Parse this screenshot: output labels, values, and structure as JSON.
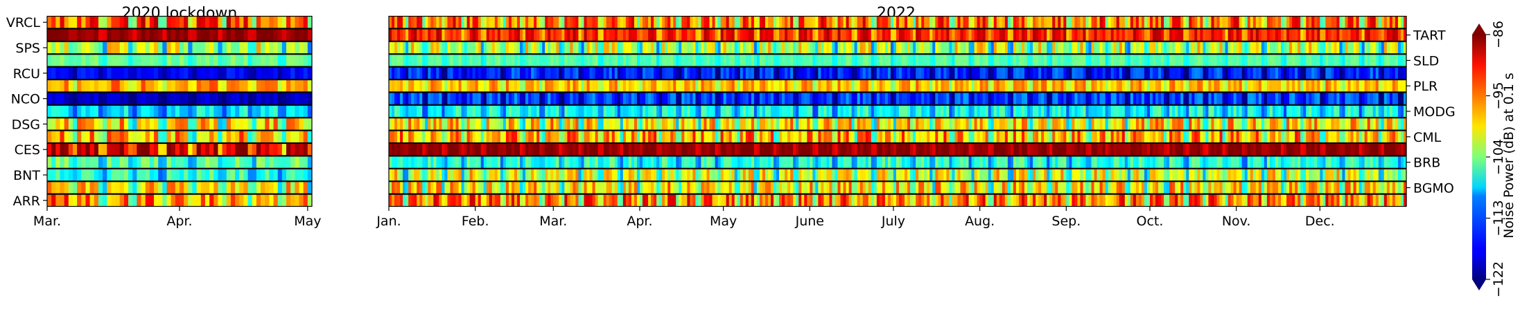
{
  "chart_data": [
    {
      "type": "heatmap",
      "title": "2020 lockdown",
      "x_ticks": [
        "Mar.",
        "Apr.",
        "May"
      ],
      "x_range": [
        "Mar. 1",
        "May 1"
      ],
      "stations_left_labels": [
        "VRCL",
        "SPS",
        "RCU",
        "NCO",
        "DSG",
        "CES",
        "BNT",
        "ARR"
      ],
      "rows": [
        {
          "station": "VRCL",
          "labeled": true,
          "base_db": -95,
          "variability": "high"
        },
        {
          "station": "TART",
          "labeled": false,
          "base_db": -87,
          "variability": "low"
        },
        {
          "station": "SPS",
          "labeled": true,
          "base_db": -103,
          "variability": "high"
        },
        {
          "station": "SLD",
          "labeled": false,
          "base_db": -105,
          "variability": "low"
        },
        {
          "station": "RCU",
          "labeled": true,
          "base_db": -118,
          "variability": "low"
        },
        {
          "station": "PLR",
          "labeled": false,
          "base_db": -97,
          "variability": "medium"
        },
        {
          "station": "NCO",
          "labeled": true,
          "base_db": -120,
          "variability": "low"
        },
        {
          "station": "MODG",
          "labeled": false,
          "base_db": -110,
          "variability": "medium"
        },
        {
          "station": "DSG",
          "labeled": true,
          "base_db": -100,
          "variability": "high"
        },
        {
          "station": "CML",
          "labeled": false,
          "base_db": -99,
          "variability": "high"
        },
        {
          "station": "CES",
          "labeled": true,
          "base_db": -90,
          "variability": "high"
        },
        {
          "station": "BRB",
          "labeled": false,
          "base_db": -106,
          "variability": "medium"
        },
        {
          "station": "BNT",
          "labeled": true,
          "base_db": -108,
          "variability": "medium"
        },
        {
          "station": "BGMO",
          "labeled": false,
          "base_db": -101,
          "variability": "high"
        },
        {
          "station": "ARR",
          "labeled": true,
          "base_db": -97,
          "variability": "high"
        }
      ]
    },
    {
      "type": "heatmap",
      "title": "2022",
      "x_ticks": [
        "Jan.",
        "Feb.",
        "Mar.",
        "Apr.",
        "May",
        "June",
        "July",
        "Aug.",
        "Sep.",
        "Oct.",
        "Nov.",
        "Dec."
      ],
      "x_range": [
        "Jan. 1",
        "Dec. 31"
      ],
      "stations_right_labels": [
        "TART",
        "SLD",
        "PLR",
        "MODG",
        "CML",
        "BRB",
        "BGMO"
      ],
      "rows": [
        {
          "station": "VRCL",
          "labeled": false,
          "base_db": -96,
          "variability": "high"
        },
        {
          "station": "TART",
          "labeled": true,
          "base_db": -92,
          "variability": "medium"
        },
        {
          "station": "SPS",
          "labeled": false,
          "base_db": -103,
          "variability": "high"
        },
        {
          "station": "SLD",
          "labeled": true,
          "base_db": -106,
          "variability": "low"
        },
        {
          "station": "RCU",
          "labeled": false,
          "base_db": -117,
          "variability": "medium"
        },
        {
          "station": "PLR",
          "labeled": true,
          "base_db": -98,
          "variability": "medium"
        },
        {
          "station": "NCO",
          "labeled": false,
          "base_db": -116,
          "variability": "medium"
        },
        {
          "station": "MODG",
          "labeled": true,
          "base_db": -109,
          "variability": "medium"
        },
        {
          "station": "DSG",
          "labeled": false,
          "base_db": -100,
          "variability": "high"
        },
        {
          "station": "CML",
          "labeled": true,
          "base_db": -98,
          "variability": "high"
        },
        {
          "station": "CES",
          "labeled": false,
          "base_db": -87,
          "variability": "low"
        },
        {
          "station": "BRB",
          "labeled": true,
          "base_db": -108,
          "variability": "medium"
        },
        {
          "station": "BNT",
          "labeled": false,
          "base_db": -102,
          "variability": "high"
        },
        {
          "station": "BGMO",
          "labeled": true,
          "base_db": -100,
          "variability": "high"
        },
        {
          "station": "ARR",
          "labeled": false,
          "base_db": -96,
          "variability": "high"
        }
      ]
    }
  ],
  "colorbar": {
    "label": "Noise Power (dB) at 0.1 s",
    "min": -122,
    "max": -86,
    "ticks": [
      "−122",
      "−113",
      "−104",
      "−95",
      "−86"
    ],
    "colormap": "jet",
    "extend": "both"
  }
}
